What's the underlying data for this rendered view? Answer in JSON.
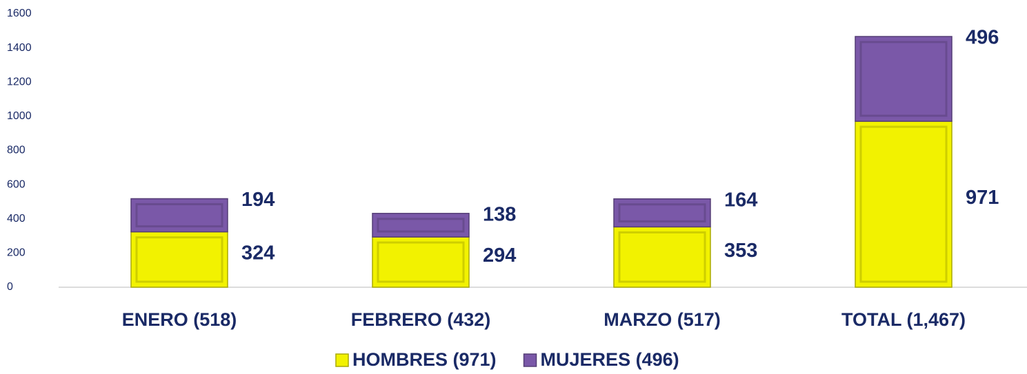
{
  "chart_data": {
    "type": "stacked_bar",
    "categories": [
      "ENERO (518)",
      "FEBRERO (432)",
      "MARZO (517)",
      "TOTAL (1,467)"
    ],
    "series": [
      {
        "name": "HOMBRES (971)",
        "color": "#f2f200",
        "values": [
          324,
          294,
          353,
          971
        ]
      },
      {
        "name": "MUJERES (496)",
        "color": "#7a58a8",
        "values": [
          194,
          138,
          164,
          496
        ]
      }
    ],
    "ylim": [
      0,
      1600
    ],
    "yticks": [
      0,
      200,
      400,
      600,
      800,
      1000,
      1200,
      1400,
      1600
    ],
    "grid": false,
    "legend": "bottom"
  }
}
